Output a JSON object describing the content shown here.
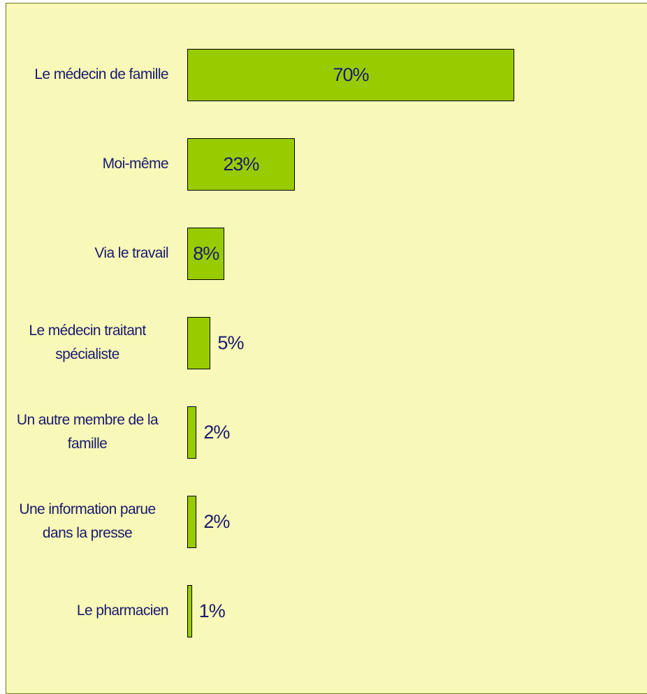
{
  "chart_data": {
    "type": "barh",
    "categories": [
      "Le  médecin de famille",
      "Moi-même",
      "Via le travail",
      "Le médecin  traitant spécialiste",
      "Un autre membre de la famille",
      "Une information parue dans la presse",
      "Le pharmacien"
    ],
    "values": [
      70,
      23,
      8,
      5,
      2,
      2,
      1
    ],
    "value_labels": [
      "70%",
      "23%",
      "8%",
      "5%",
      "2%",
      "2%",
      "1%"
    ],
    "color": "#99cc00",
    "xlim": [
      0,
      100
    ]
  }
}
